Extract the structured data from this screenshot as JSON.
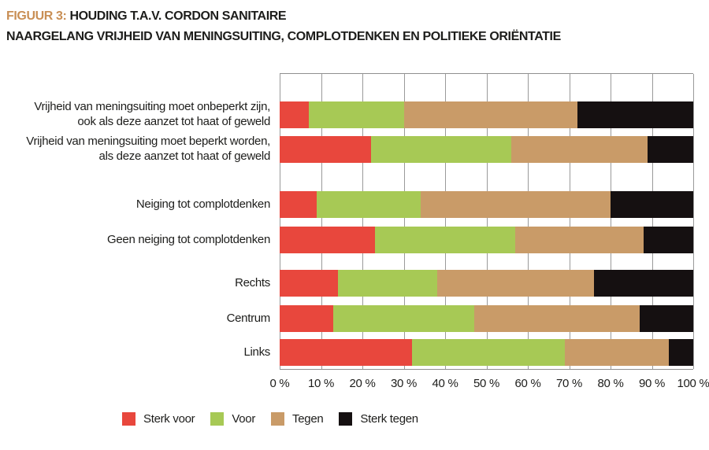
{
  "title": {
    "prefix": "FIGUUR 3:",
    "line1": "HOUDING T.A.V. CORDON SANITAIRE",
    "line2": "NAARGELANG VRIJHEID VAN MENINGSUITING, COMPLOTDENKEN EN POLITIEKE ORIËNTATIE"
  },
  "colors": {
    "accent": "#c98f55",
    "text": "#1d1d1b",
    "grid": "#9a9a9a",
    "sterk_voor": "#e8473d",
    "voor": "#a7c955",
    "tegen": "#c99b68",
    "sterk_tegen": "#151011"
  },
  "chart_data": {
    "type": "bar",
    "orientation": "horizontal",
    "stacked": true,
    "title": "FIGUUR 3: HOUDING T.A.V. CORDON SANITAIRE NAARGELANG VRIJHEID VAN MENINGSUITING, COMPLOTDENKEN EN POLITIEKE ORIËNTATIE",
    "categories": [
      [
        "Vrijheid van meningsuiting moet onbeperkt zijn,",
        "ook als deze aanzet tot haat of geweld"
      ],
      [
        "Vrijheid van meningsuiting moet beperkt worden,",
        "als deze aanzet tot haat of geweld"
      ],
      [
        "Neiging tot complotdenken"
      ],
      [
        "Geen neiging tot complotdenken"
      ],
      [
        "Rechts"
      ],
      [
        "Centrum"
      ],
      [
        "Links"
      ]
    ],
    "series": [
      {
        "name": "Sterk voor",
        "color": "#e8473d",
        "values": [
          7,
          22,
          9,
          23,
          14,
          13,
          32
        ]
      },
      {
        "name": "Voor",
        "color": "#a7c955",
        "values": [
          23,
          34,
          25,
          34,
          24,
          34,
          37
        ]
      },
      {
        "name": "Tegen",
        "color": "#c99b68",
        "values": [
          42,
          33,
          46,
          31,
          38,
          40,
          25
        ]
      },
      {
        "name": "Sterk tegen",
        "color": "#151011",
        "values": [
          28,
          11,
          20,
          12,
          24,
          13,
          6
        ]
      }
    ],
    "x_ticks": [
      "0 %",
      "10 %",
      "20 %",
      "30 %",
      "40 %",
      "50 %",
      "60 %",
      "70 %",
      "80 %",
      "90 %",
      "100 %"
    ],
    "xlim": [
      0,
      100
    ],
    "grid": true,
    "legend_position": "bottom"
  },
  "legend": {
    "items": [
      {
        "label": "Sterk voor",
        "color": "#e8473d"
      },
      {
        "label": "Voor",
        "color": "#a7c955"
      },
      {
        "label": "Tegen",
        "color": "#c99b68"
      },
      {
        "label": "Sterk tegen",
        "color": "#151011"
      }
    ]
  }
}
